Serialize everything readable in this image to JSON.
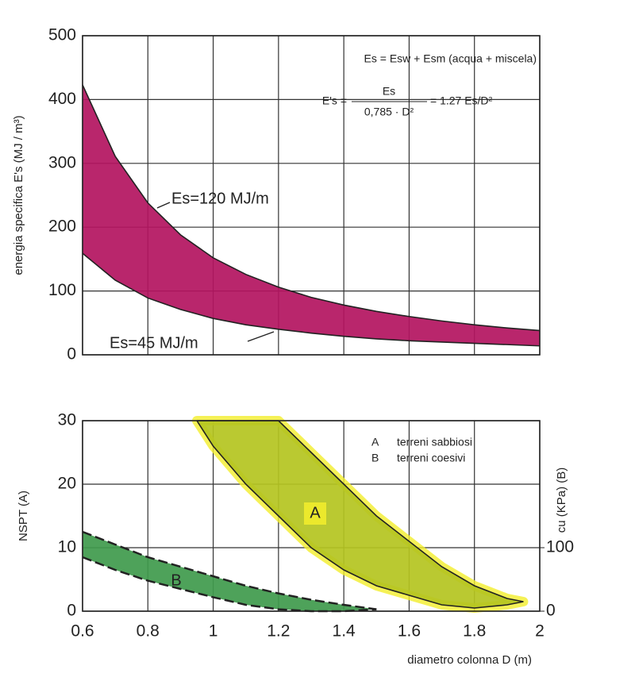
{
  "chart_data": [
    {
      "type": "band",
      "y_label": "energia specifica E's (MJ / m³)",
      "formula_1": "Es = Esw + Esm (acqua + miscela)",
      "formula_2_left": "E's =",
      "formula_2_num": "Es",
      "formula_2_den": "0,785 · D²",
      "formula_2_right": "= 1.27 Es/D²",
      "xlim": [
        0.6,
        2
      ],
      "xticks": [
        0.6,
        0.8,
        1,
        1.2,
        1.4,
        1.6,
        1.8,
        2
      ],
      "ylim": [
        0,
        500
      ],
      "yticks": [
        0,
        100,
        200,
        300,
        400,
        500
      ],
      "grid": true,
      "series": [
        {
          "name": "Es=120 MJ/m / Es=45 MJ/m",
          "color": "#b3145f",
          "x": [
            0.6,
            0.7,
            0.8,
            0.9,
            1.0,
            1.1,
            1.2,
            1.3,
            1.4,
            1.5,
            1.6,
            1.7,
            1.8,
            1.9,
            2.0
          ],
          "upper": [
            423,
            311,
            238,
            188,
            152,
            126,
            106,
            90,
            78,
            68,
            60,
            53,
            47,
            42,
            38
          ],
          "lower": [
            159,
            117,
            89,
            71,
            57,
            47,
            40,
            34,
            29,
            25,
            22,
            20,
            18,
            16,
            14
          ]
        }
      ],
      "annotations": [
        "Es=120 MJ/m",
        "Es=45 MJ/m"
      ]
    },
    {
      "type": "band",
      "x_label": "diametro colonna D (m)",
      "y_label": "NSPT (A)",
      "y2_label": "cu (KPa) (B)",
      "xlim": [
        0.6,
        2
      ],
      "xticks": [
        0.6,
        0.8,
        1,
        1.2,
        1.4,
        1.6,
        1.8,
        2
      ],
      "ylim": [
        0,
        30
      ],
      "yticks": [
        0,
        10,
        20,
        30
      ],
      "y2lim": [
        0,
        300
      ],
      "y2ticks": [
        0,
        100
      ],
      "grid": true,
      "series": [
        {
          "name": "A",
          "description": "terreni sabbiosi",
          "color": "#b4c41f",
          "halo": "#f3ee2c",
          "x": [
            0.95,
            1.0,
            1.1,
            1.2,
            1.3,
            1.4,
            1.5,
            1.6,
            1.7,
            1.8,
            1.9,
            1.95
          ],
          "upper": [
            30,
            30,
            30,
            30,
            25,
            20,
            15,
            11,
            7,
            4,
            2,
            1.5
          ],
          "lower": [
            30,
            26,
            20,
            15,
            10,
            6.5,
            4,
            2.5,
            1,
            0.5,
            1,
            1.5
          ]
        },
        {
          "name": "B",
          "description": "terreni coesivi",
          "color": "#3f9a4c",
          "axis": "y2",
          "dashed": true,
          "x": [
            0.6,
            0.7,
            0.8,
            0.9,
            1.0,
            1.1,
            1.2,
            1.3,
            1.4,
            1.5
          ],
          "upper": [
            125,
            105,
            85,
            70,
            55,
            40,
            28,
            18,
            10,
            3
          ],
          "lower": [
            85,
            65,
            48,
            35,
            22,
            10,
            3,
            0,
            0,
            3
          ]
        }
      ]
    }
  ]
}
